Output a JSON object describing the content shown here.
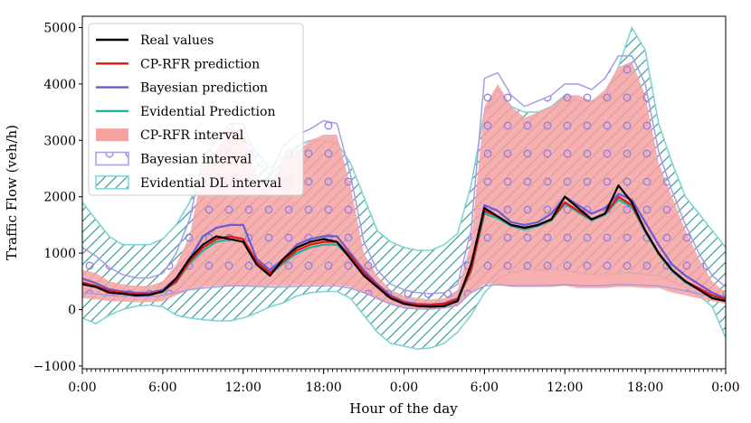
{
  "chart_data": {
    "type": "line",
    "title": "",
    "xlabel": "Hour of the day",
    "ylabel": "Traffic Flow (veh/h)",
    "xlim": [
      0,
      48
    ],
    "ylim": [
      -1050,
      5200
    ],
    "xticks": [
      0,
      6,
      12,
      18,
      24,
      30,
      36,
      42,
      48
    ],
    "xtick_labels": [
      "0:00",
      "6:00",
      "12:00",
      "18:00",
      "0:00",
      "6:00",
      "12:00",
      "18:00",
      "0:00"
    ],
    "yticks": [
      -1000,
      0,
      1000,
      2000,
      3000,
      4000,
      5000
    ],
    "ytick_labels": [
      "−1000",
      "0",
      "1000",
      "2000",
      "3000",
      "4000",
      "5000"
    ],
    "legend_position": "top-left",
    "x_hours": [
      0,
      1,
      2,
      3,
      4,
      5,
      6,
      7,
      8,
      9,
      10,
      11,
      12,
      13,
      14,
      15,
      16,
      17,
      18,
      19,
      20,
      21,
      22,
      23,
      24,
      25,
      26,
      27,
      28,
      29,
      30,
      31,
      32,
      33,
      34,
      35,
      36,
      37,
      38,
      39,
      40,
      41,
      42,
      43,
      44,
      45,
      46,
      47,
      48
    ],
    "series": [
      {
        "name": "Real values",
        "kind": "line",
        "color": "#000000",
        "values": [
          450,
          400,
          300,
          280,
          250,
          260,
          320,
          550,
          900,
          1150,
          1300,
          1250,
          1200,
          800,
          600,
          900,
          1100,
          1200,
          1250,
          1200,
          900,
          600,
          400,
          200,
          100,
          60,
          50,
          60,
          150,
          800,
          1800,
          1650,
          1500,
          1450,
          1500,
          1600,
          2000,
          1800,
          1600,
          1700,
          2200,
          1900,
          1400,
          1000,
          700,
          500,
          350,
          200,
          150
        ]
      },
      {
        "name": "CP-RFR prediction",
        "kind": "line",
        "color": "#e8140c",
        "values": [
          480,
          420,
          330,
          300,
          270,
          270,
          330,
          500,
          850,
          1100,
          1250,
          1300,
          1250,
          850,
          650,
          850,
          1050,
          1150,
          1200,
          1200,
          950,
          650,
          420,
          220,
          120,
          80,
          80,
          100,
          180,
          700,
          1750,
          1650,
          1500,
          1450,
          1500,
          1600,
          1900,
          1750,
          1600,
          1700,
          2000,
          1850,
          1400,
          1000,
          700,
          500,
          380,
          250,
          180
        ]
      },
      {
        "name": "Bayesian prediction",
        "kind": "line",
        "color": "#6a5ad6",
        "values": [
          550,
          470,
          360,
          320,
          300,
          300,
          350,
          560,
          900,
          1300,
          1450,
          1500,
          1500,
          900,
          700,
          900,
          1150,
          1250,
          1300,
          1300,
          1000,
          700,
          450,
          250,
          140,
          100,
          90,
          110,
          200,
          750,
          1850,
          1750,
          1550,
          1500,
          1550,
          1700,
          2000,
          1850,
          1700,
          1800,
          2050,
          1950,
          1550,
          1150,
          800,
          600,
          450,
          300,
          200
        ]
      },
      {
        "name": "Evidential Prediction",
        "kind": "line",
        "color": "#20b2a0",
        "values": [
          470,
          420,
          330,
          300,
          270,
          270,
          320,
          480,
          820,
          1050,
          1200,
          1250,
          1200,
          800,
          620,
          820,
          1000,
          1100,
          1150,
          1150,
          920,
          630,
          400,
          210,
          110,
          70,
          70,
          90,
          170,
          680,
          1700,
          1620,
          1480,
          1420,
          1480,
          1580,
          1880,
          1720,
          1580,
          1680,
          1950,
          1820,
          1380,
          980,
          680,
          480,
          360,
          240,
          170
        ]
      },
      {
        "name": "CP-RFR interval",
        "kind": "band",
        "color": "#f7a1a1",
        "lower": [
          200,
          180,
          150,
          140,
          130,
          130,
          150,
          250,
          350,
          400,
          420,
          430,
          430,
          420,
          420,
          420,
          430,
          440,
          440,
          440,
          400,
          300,
          180,
          80,
          20,
          10,
          10,
          20,
          60,
          300,
          450,
          450,
          400,
          400,
          400,
          400,
          420,
          380,
          380,
          380,
          400,
          400,
          380,
          380,
          300,
          250,
          200,
          150,
          100
        ],
        "upper": [
          700,
          650,
          500,
          450,
          420,
          420,
          500,
          800,
          1300,
          2500,
          2800,
          3200,
          3200,
          2400,
          2200,
          2700,
          2800,
          3000,
          3100,
          3100,
          2200,
          1000,
          600,
          350,
          250,
          200,
          180,
          200,
          350,
          1200,
          3600,
          4000,
          3600,
          3400,
          3500,
          3600,
          3800,
          3800,
          3700,
          3900,
          4300,
          4400,
          3800,
          2600,
          2000,
          1400,
          900,
          500,
          300
        ]
      },
      {
        "name": "Bayesian interval",
        "kind": "band",
        "color": "#a99be6",
        "lower": [
          300,
          280,
          250,
          240,
          230,
          230,
          250,
          300,
          350,
          380,
          400,
          420,
          420,
          410,
          400,
          400,
          410,
          420,
          420,
          420,
          380,
          300,
          200,
          100,
          30,
          10,
          10,
          30,
          80,
          300,
          420,
          440,
          420,
          420,
          420,
          430,
          440,
          430,
          420,
          430,
          440,
          440,
          430,
          420,
          380,
          330,
          280,
          230,
          200
        ],
        "upper": [
          1100,
          950,
          750,
          620,
          560,
          560,
          640,
          1000,
          1600,
          2700,
          3000,
          3300,
          3300,
          2600,
          2400,
          2900,
          3100,
          3200,
          3350,
          3300,
          2400,
          1200,
          700,
          450,
          350,
          300,
          280,
          300,
          450,
          1400,
          4100,
          4200,
          3800,
          3600,
          3700,
          3800,
          4000,
          4000,
          3900,
          4100,
          4500,
          4500,
          4000,
          2800,
          2100,
          1500,
          1000,
          600,
          400
        ]
      },
      {
        "name": "Evidential DL interval",
        "kind": "band",
        "color": "#7fd3d5",
        "lower": [
          -150,
          -250,
          -100,
          0,
          60,
          80,
          50,
          -100,
          -150,
          -180,
          -200,
          -200,
          -150,
          -60,
          50,
          120,
          240,
          300,
          320,
          320,
          200,
          -100,
          -400,
          -600,
          -650,
          -700,
          -680,
          -600,
          -400,
          -100,
          300,
          550,
          650,
          700,
          700,
          720,
          700,
          650,
          620,
          620,
          640,
          650,
          620,
          600,
          500,
          400,
          250,
          50,
          -500
        ],
        "upper": [
          1900,
          1600,
          1300,
          1150,
          1150,
          1150,
          1250,
          1500,
          1900,
          2500,
          2800,
          3000,
          3000,
          2800,
          2500,
          2700,
          2900,
          3000,
          3000,
          2950,
          2600,
          2000,
          1400,
          1200,
          1100,
          1050,
          1050,
          1150,
          1350,
          2200,
          3500,
          3900,
          3600,
          3500,
          3500,
          3600,
          3800,
          3700,
          3700,
          3800,
          4300,
          5000,
          4600,
          3300,
          2600,
          2000,
          1700,
          1400,
          1100
        ]
      }
    ],
    "legend": [
      "Real values",
      "CP-RFR prediction",
      "Bayesian prediction",
      "Evidential Prediction",
      "CP-RFR interval",
      "Bayesian interval",
      "Evidential DL interval"
    ]
  }
}
